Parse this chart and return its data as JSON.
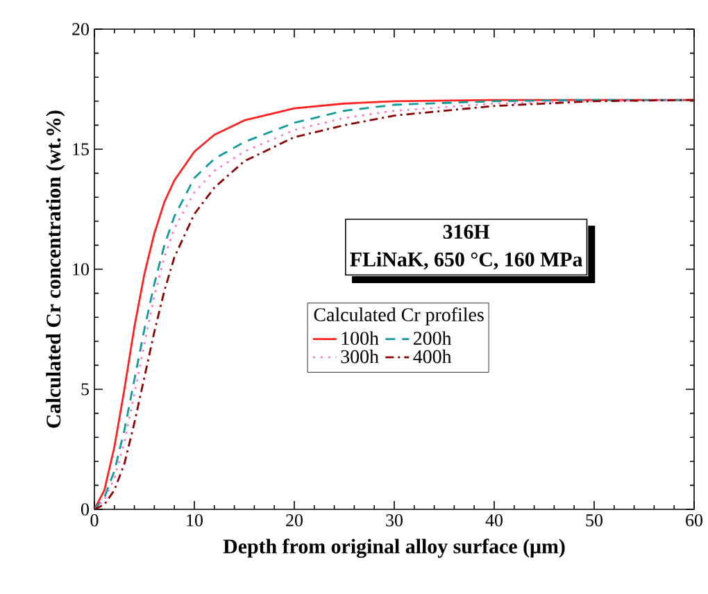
{
  "chart_data": {
    "type": "line",
    "xlabel": "Depth from original alloy surface (μm)",
    "ylabel": "Calculated Cr concentration (wt.%)",
    "legend_title": "Calculated Cr profiles",
    "legend": "right",
    "annotations": [
      "316H",
      "FLiNaK, 650 °C, 160 MPa"
    ],
    "xlim": [
      0,
      60
    ],
    "xticks": [
      0,
      10,
      20,
      30,
      40,
      50,
      60
    ],
    "ylim": [
      0,
      20
    ],
    "yticks": [
      0,
      5,
      10,
      15,
      20
    ],
    "grid": false,
    "marker": "none",
    "series": [
      {
        "name": "100h",
        "color": "#ff2020",
        "line_style": "solid",
        "x": [
          0,
          1,
          2,
          3,
          4,
          5,
          6,
          7,
          8,
          10,
          12,
          15,
          20,
          25,
          30,
          40,
          60
        ],
        "values": [
          0,
          0.8,
          2.6,
          5.0,
          7.6,
          9.8,
          11.5,
          12.8,
          13.7,
          14.9,
          15.6,
          16.2,
          16.7,
          16.9,
          17.0,
          17.05,
          17.05
        ]
      },
      {
        "name": "200h",
        "color": "#109a9a",
        "line_style": "dashed",
        "x": [
          0,
          1,
          2,
          3,
          4,
          5,
          6,
          7,
          8,
          10,
          12,
          15,
          20,
          25,
          30,
          40,
          50,
          60
        ],
        "values": [
          0,
          0.5,
          1.6,
          3.3,
          5.4,
          7.5,
          9.4,
          11.0,
          12.2,
          13.8,
          14.6,
          15.3,
          16.1,
          16.6,
          16.85,
          17.0,
          17.05,
          17.05
        ]
      },
      {
        "name": "300h",
        "color": "#ff77c8",
        "line_style": "dotted",
        "x": [
          0,
          1,
          2,
          3,
          4,
          5,
          6,
          7,
          8,
          10,
          12,
          15,
          20,
          25,
          30,
          40,
          50,
          60
        ],
        "values": [
          0,
          0.4,
          1.3,
          2.8,
          4.8,
          6.9,
          8.9,
          10.5,
          11.7,
          13.2,
          14.1,
          14.9,
          15.8,
          16.3,
          16.6,
          16.9,
          17.0,
          17.05
        ]
      },
      {
        "name": "400h",
        "color": "#8b0000",
        "line_style": "dashdot",
        "x": [
          0,
          1,
          2,
          3,
          4,
          5,
          6,
          7,
          8,
          10,
          12,
          15,
          20,
          25,
          30,
          40,
          50,
          60
        ],
        "values": [
          0,
          0.2,
          0.8,
          1.9,
          3.6,
          5.5,
          7.4,
          9.1,
          10.5,
          12.3,
          13.4,
          14.5,
          15.5,
          16.0,
          16.4,
          16.8,
          17.0,
          17.05
        ]
      }
    ]
  }
}
